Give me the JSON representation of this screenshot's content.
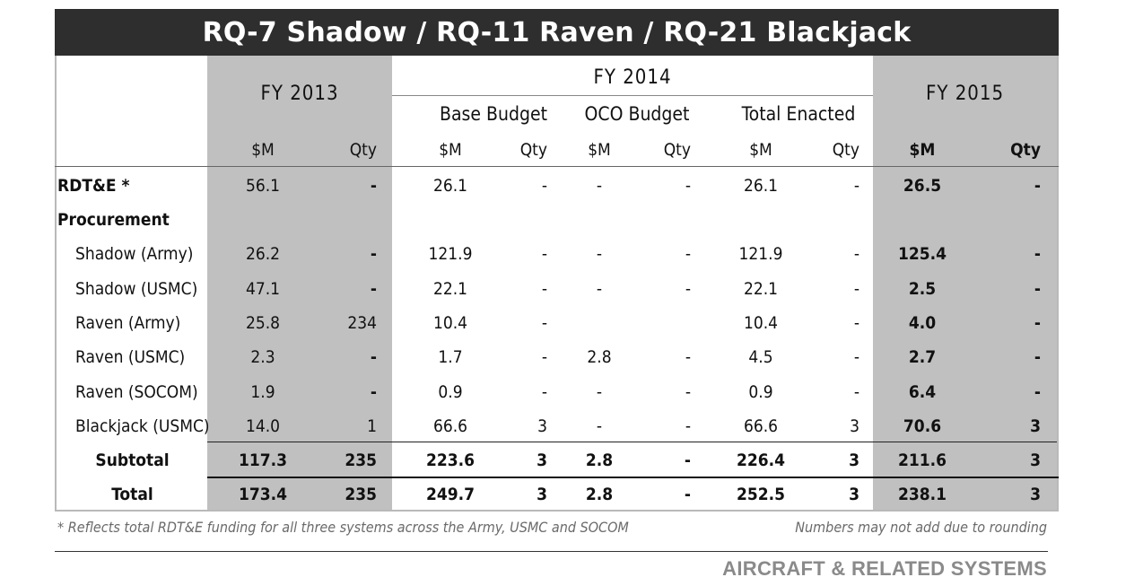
{
  "title": "RQ-7 Shadow / RQ-11 Raven / RQ-21 Blackjack",
  "headers": {
    "fy2013": "FY 2013",
    "fy2014": "FY 2014",
    "fy2015": "FY 2015",
    "base_budget": "Base Budget",
    "oco_budget": "OCO Budget",
    "total_enacted": "Total Enacted",
    "cols": [
      "$M",
      "Qty",
      "$M",
      "Qty",
      "$M",
      "Qty",
      "$M",
      "Qty",
      "$M",
      "Qty"
    ]
  },
  "rows": [
    {
      "label": "RDT&E  *",
      "values": [
        "56.1",
        "-",
        "26.1",
        "-",
        "-",
        "-",
        "26.1",
        "-",
        "26.5",
        "-"
      ]
    },
    {
      "label": "Procurement",
      "values": [
        "",
        "",
        "",
        "",
        "",
        "",
        "",
        "",
        "",
        ""
      ]
    },
    {
      "label": "Shadow (Army)",
      "values": [
        "26.2",
        "-",
        "121.9",
        "-",
        "-",
        "-",
        "121.9",
        "-",
        "125.4",
        "-"
      ]
    },
    {
      "label": "Shadow (USMC)",
      "values": [
        "47.1",
        "-",
        "22.1",
        "-",
        "-",
        "-",
        "22.1",
        "-",
        "2.5",
        "-"
      ]
    },
    {
      "label": "Raven (Army)",
      "values": [
        "25.8",
        "234",
        "10.4",
        "-",
        "",
        "",
        "10.4",
        "-",
        "4.0",
        "-"
      ]
    },
    {
      "label": "Raven (USMC)",
      "values": [
        "2.3",
        "-",
        "1.7",
        "-",
        "2.8",
        "-",
        "4.5",
        "-",
        "2.7",
        "-"
      ]
    },
    {
      "label": "Raven (SOCOM)",
      "values": [
        "1.9",
        "-",
        "0.9",
        "-",
        "-",
        "-",
        "0.9",
        "-",
        "6.4",
        "-"
      ]
    },
    {
      "label": "Blackjack (USMC)",
      "values": [
        "14.0",
        "1",
        "66.6",
        "3",
        "-",
        "-",
        "66.6",
        "3",
        "70.6",
        "3"
      ]
    },
    {
      "label": "Subtotal",
      "values": [
        "117.3",
        "235",
        "223.6",
        "3",
        "2.8",
        "-",
        "226.4",
        "3",
        "211.6",
        "3"
      ]
    },
    {
      "label": "Total",
      "values": [
        "173.4",
        "235",
        "249.7",
        "3",
        "2.8",
        "-",
        "252.5",
        "3",
        "238.1",
        "3"
      ]
    }
  ],
  "footnote_left": "* Reflects total RDT&E funding for all three systems across the Army, USMC and SOCOM",
  "footnote_right": "Numbers may not add due to rounding",
  "section_label": "AIRCRAFT & RELATED SYSTEMS"
}
